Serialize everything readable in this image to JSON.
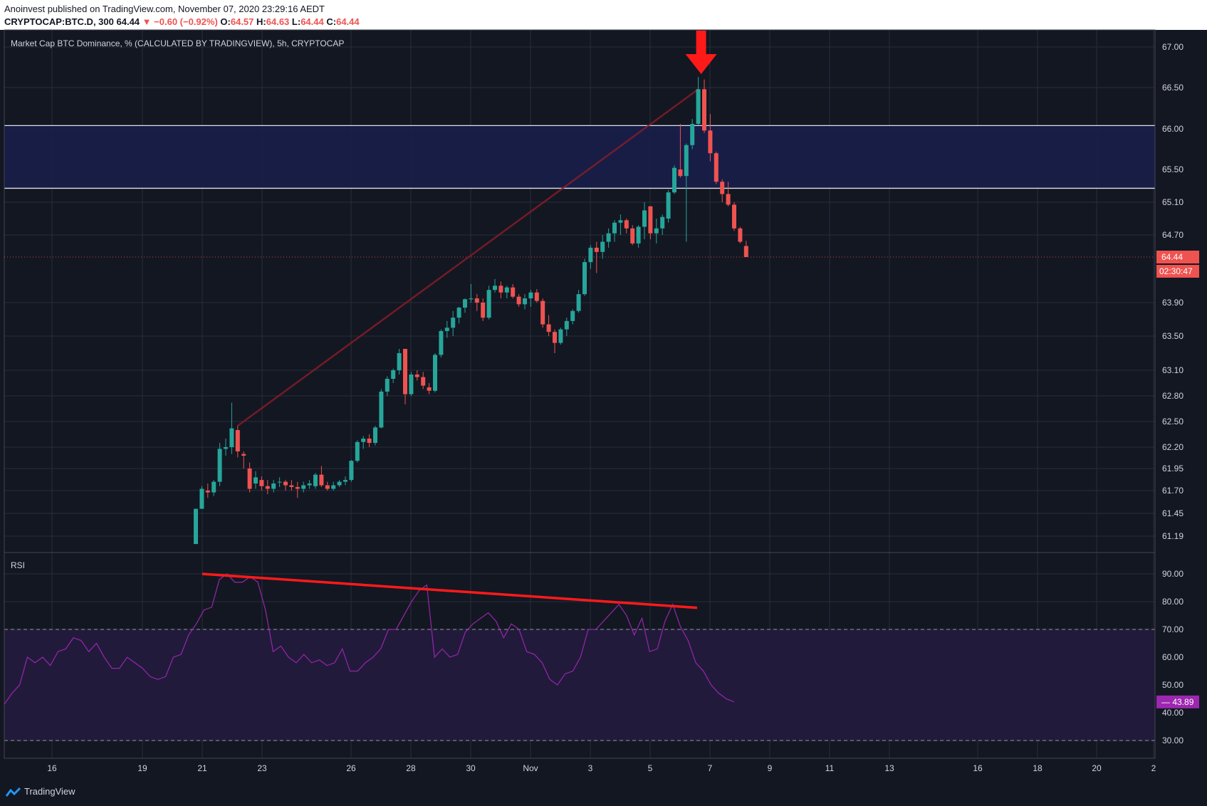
{
  "header": {
    "publisher_line": "Anoinvest published on TradingView.com, November 07, 2020 23:29:16 AEDT",
    "symbol": "CRYPTOCAP:BTC.D, 300",
    "last": "64.44",
    "change": "▼ −0.60 (−0.92%)",
    "open_label": "O:",
    "open": "64.57",
    "high_label": "H:",
    "high": "64.63",
    "low_label": "L:",
    "low": "64.44",
    "close_label": "C:",
    "close": "64.44"
  },
  "chart_data": [
    {
      "type": "candlestick",
      "title": "Market Cap BTC Dominance, % (CALCULATED BY TRADINGVIEW), 5h, CRYPTOCAP",
      "y_ticks": [
        67.0,
        66.5,
        66.0,
        65.5,
        65.1,
        64.7,
        63.9,
        63.5,
        63.1,
        62.8,
        62.5,
        62.2,
        61.95,
        61.7,
        61.45,
        61.19
      ],
      "x_ticks": [
        "16",
        "19",
        "21",
        "23",
        "26",
        "28",
        "30",
        "Nov",
        "3",
        "5",
        "7",
        "9",
        "11",
        "13",
        "16",
        "18",
        "20",
        "2"
      ],
      "last_price_label": "64.44",
      "countdown_label": "02:30:47",
      "resistance_zone": [
        65.27,
        66.04
      ],
      "candles": [
        [
          61.1,
          61.5,
          61.1,
          61.5
        ],
        [
          61.5,
          61.75,
          61.5,
          61.72
        ],
        [
          61.7,
          61.78,
          61.62,
          61.68
        ],
        [
          61.68,
          61.82,
          61.64,
          61.8
        ],
        [
          61.8,
          62.25,
          61.75,
          62.18
        ],
        [
          62.18,
          62.3,
          62.1,
          62.2
        ],
        [
          62.2,
          62.72,
          62.12,
          62.42
        ],
        [
          62.4,
          62.45,
          62.08,
          62.15
        ],
        [
          62.12,
          62.15,
          61.95,
          62.1
        ],
        [
          61.95,
          62.02,
          61.68,
          61.72
        ],
        [
          61.78,
          61.92,
          61.72,
          61.85
        ],
        [
          61.82,
          61.86,
          61.7,
          61.75
        ],
        [
          61.75,
          61.82,
          61.66,
          61.72
        ],
        [
          61.72,
          61.82,
          61.68,
          61.78
        ],
        [
          61.8,
          61.85,
          61.74,
          61.8
        ],
        [
          61.8,
          61.82,
          61.7,
          61.76
        ],
        [
          61.76,
          61.82,
          61.7,
          61.74
        ],
        [
          61.74,
          61.8,
          61.62,
          61.72
        ],
        [
          61.72,
          61.8,
          61.68,
          61.76
        ],
        [
          61.76,
          61.82,
          61.72,
          61.78
        ],
        [
          61.75,
          61.9,
          61.72,
          61.88
        ],
        [
          61.88,
          61.98,
          61.74,
          61.76
        ],
        [
          61.76,
          61.8,
          61.7,
          61.72
        ],
        [
          61.72,
          61.8,
          61.7,
          61.76
        ],
        [
          61.76,
          61.82,
          61.74,
          61.8
        ],
        [
          61.8,
          61.86,
          61.76,
          61.82
        ],
        [
          61.82,
          62.05,
          61.8,
          62.04
        ],
        [
          62.04,
          62.28,
          62.02,
          62.26
        ],
        [
          62.26,
          62.33,
          62.18,
          62.3
        ],
        [
          62.3,
          62.35,
          62.2,
          62.25
        ],
        [
          62.25,
          62.45,
          62.22,
          62.43
        ],
        [
          62.43,
          62.88,
          62.42,
          62.85
        ],
        [
          62.85,
          63.03,
          62.8,
          63.0
        ],
        [
          63.0,
          63.12,
          62.95,
          63.1
        ],
        [
          63.1,
          63.35,
          63.05,
          63.3
        ],
        [
          63.35,
          63.35,
          62.7,
          62.82
        ],
        [
          62.82,
          63.08,
          62.8,
          63.05
        ],
        [
          63.05,
          63.1,
          62.98,
          63.02
        ],
        [
          63.02,
          63.08,
          62.88,
          62.92
        ],
        [
          62.9,
          62.95,
          62.82,
          62.86
        ],
        [
          62.86,
          63.3,
          62.84,
          63.28
        ],
        [
          63.28,
          63.58,
          63.25,
          63.56
        ],
        [
          63.56,
          63.68,
          63.48,
          63.6
        ],
        [
          63.6,
          63.8,
          63.5,
          63.72
        ],
        [
          63.72,
          63.85,
          63.65,
          63.84
        ],
        [
          63.84,
          63.95,
          63.78,
          63.94
        ],
        [
          63.94,
          64.12,
          63.9,
          63.95
        ],
        [
          63.95,
          64.0,
          63.8,
          63.9
        ],
        [
          63.9,
          63.95,
          63.68,
          63.72
        ],
        [
          63.72,
          64.1,
          63.7,
          64.05
        ],
        [
          64.05,
          64.18,
          64.02,
          64.1
        ],
        [
          64.1,
          64.15,
          63.95,
          64.02
        ],
        [
          64.02,
          64.1,
          63.95,
          64.08
        ],
        [
          64.08,
          64.12,
          63.95,
          63.97
        ],
        [
          63.97,
          64.0,
          63.85,
          63.88
        ],
        [
          63.88,
          64.0,
          63.82,
          63.95
        ],
        [
          63.95,
          64.05,
          63.85,
          64.02
        ],
        [
          64.02,
          64.06,
          63.9,
          63.92
        ],
        [
          63.92,
          63.95,
          63.6,
          63.64
        ],
        [
          63.64,
          63.75,
          63.5,
          63.55
        ],
        [
          63.55,
          63.58,
          63.3,
          63.42
        ],
        [
          63.42,
          63.6,
          63.4,
          63.58
        ],
        [
          63.58,
          63.72,
          63.5,
          63.68
        ],
        [
          63.68,
          63.82,
          63.64,
          63.8
        ],
        [
          63.8,
          64.05,
          63.78,
          64.0
        ],
        [
          64.0,
          64.42,
          63.98,
          64.38
        ],
        [
          64.38,
          64.58,
          64.3,
          64.55
        ],
        [
          64.55,
          64.62,
          64.25,
          64.5
        ],
        [
          64.5,
          64.7,
          64.42,
          64.62
        ],
        [
          64.62,
          64.78,
          64.55,
          64.72
        ],
        [
          64.72,
          64.88,
          64.62,
          64.85
        ],
        [
          64.85,
          64.95,
          64.7,
          64.88
        ],
        [
          64.88,
          64.9,
          64.72,
          64.78
        ],
        [
          64.78,
          64.82,
          64.58,
          64.6
        ],
        [
          64.6,
          64.82,
          64.55,
          64.8
        ],
        [
          64.8,
          65.1,
          64.65,
          65.0
        ],
        [
          65.05,
          65.05,
          64.65,
          64.72
        ],
        [
          64.72,
          64.9,
          64.6,
          64.78
        ],
        [
          64.78,
          64.95,
          64.7,
          64.92
        ],
        [
          64.9,
          65.25,
          64.85,
          65.22
        ],
        [
          65.22,
          65.55,
          65.2,
          65.52
        ],
        [
          65.5,
          66.06,
          65.4,
          65.42
        ],
        [
          65.42,
          65.82,
          64.62,
          65.8
        ],
        [
          65.8,
          66.12,
          65.75,
          66.06
        ],
        [
          66.06,
          66.63,
          66.05,
          66.48
        ],
        [
          66.48,
          66.6,
          65.95,
          65.98
        ],
        [
          65.98,
          66.18,
          65.6,
          65.7
        ],
        [
          65.7,
          65.72,
          65.32,
          65.35
        ],
        [
          65.35,
          65.38,
          65.1,
          65.2
        ],
        [
          65.2,
          65.35,
          65.05,
          65.07
        ],
        [
          65.07,
          65.1,
          64.75,
          64.78
        ],
        [
          64.78,
          64.8,
          64.6,
          64.62
        ],
        [
          64.57,
          64.63,
          64.44,
          64.44
        ]
      ]
    },
    {
      "type": "line",
      "title": "RSI",
      "y_ticks": [
        90.0,
        80.0,
        70.0,
        60.0,
        50.0,
        40.0,
        30.0
      ],
      "bands": [
        30,
        70
      ],
      "last_value_label": "43.89",
      "series": [
        {
          "values": [
            43,
            47,
            50,
            60,
            58,
            60,
            57,
            62,
            63,
            67,
            66,
            62,
            65,
            60,
            56,
            56,
            60,
            58,
            56,
            53,
            52,
            53,
            60,
            61,
            68,
            72,
            77,
            78,
            88,
            90,
            87,
            87,
            89,
            87,
            77,
            62,
            64,
            60,
            58,
            61,
            58,
            59,
            57,
            58,
            63,
            55,
            55,
            58,
            60,
            63,
            70,
            70,
            75,
            80,
            84,
            86,
            60,
            63,
            60,
            61,
            69,
            72,
            74,
            76,
            73,
            67,
            72,
            70,
            62,
            61,
            58,
            52,
            50,
            54,
            55,
            60,
            70,
            70,
            73,
            76,
            79,
            75,
            68,
            74,
            62,
            63,
            73,
            79,
            71,
            66,
            58,
            55,
            50,
            47,
            45,
            43.89
          ]
        }
      ]
    }
  ]
}
